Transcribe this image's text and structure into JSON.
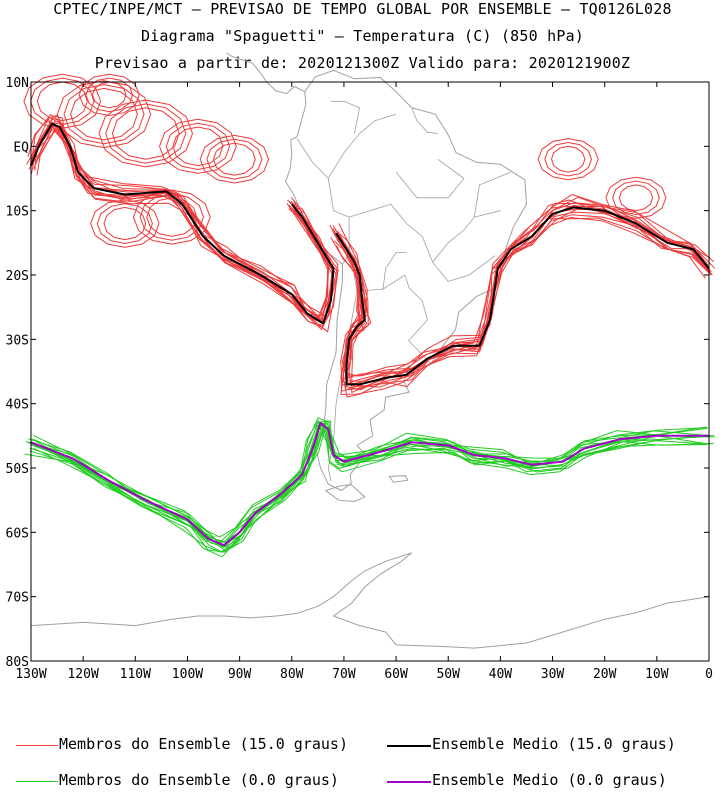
{
  "title": {
    "line1": "CPTEC/INPE/MCT – PREVISAO DE TEMPO GLOBAL POR ENSEMBLE – TQ0126L028",
    "line2": "Diagrama \"Spaguetti\" – Temperatura (C) (850 hPa)",
    "line3": "Previsao a partir de: 2020121300Z  Valido para: 2020121900Z"
  },
  "map": {
    "lon_range": [
      -130,
      0
    ],
    "lat_range": [
      -80,
      10
    ],
    "lat_ticks": [
      {
        "value": 10,
        "label": "10N"
      },
      {
        "value": 0,
        "label": "EQ"
      },
      {
        "value": -10,
        "label": "10S"
      },
      {
        "value": -20,
        "label": "20S"
      },
      {
        "value": -30,
        "label": "30S"
      },
      {
        "value": -40,
        "label": "40S"
      },
      {
        "value": -50,
        "label": "50S"
      },
      {
        "value": -60,
        "label": "60S"
      },
      {
        "value": -70,
        "label": "70S"
      },
      {
        "value": -80,
        "label": "80S"
      }
    ],
    "lon_ticks": [
      {
        "value": -130,
        "label": "130W"
      },
      {
        "value": -120,
        "label": "120W"
      },
      {
        "value": -110,
        "label": "110W"
      },
      {
        "value": -100,
        "label": "100W"
      },
      {
        "value": -90,
        "label": "90W"
      },
      {
        "value": -80,
        "label": "80W"
      },
      {
        "value": -70,
        "label": "70W"
      },
      {
        "value": -60,
        "label": "60W"
      },
      {
        "value": -50,
        "label": "50W"
      },
      {
        "value": -40,
        "label": "40W"
      },
      {
        "value": -30,
        "label": "30W"
      },
      {
        "value": -20,
        "label": "20W"
      },
      {
        "value": -10,
        "label": "10W"
      },
      {
        "value": 0,
        "label": "0"
      }
    ],
    "colors": {
      "coastline": "#a0a0a0",
      "members_15": "#ee3a3a",
      "mean_15": "#000000",
      "members_0": "#22cc22",
      "mean_0": "#a000c8"
    }
  },
  "chart_data": {
    "type": "line",
    "series": [
      {
        "name": "Ensemble Medio (15.0 graus)",
        "segments": [
          [
            [
              -130,
              -3
            ],
            [
              -128.5,
              0
            ],
            [
              -126,
              3.5
            ],
            [
              -124.5,
              3
            ],
            [
              -122.5,
              0
            ],
            [
              -121,
              -4
            ],
            [
              -118,
              -6.5
            ],
            [
              -112,
              -7.5
            ],
            [
              -104,
              -7
            ],
            [
              -101,
              -9
            ],
            [
              -97,
              -14
            ],
            [
              -93,
              -17
            ],
            [
              -86,
              -20
            ],
            [
              -80,
              -23
            ],
            [
              -77,
              -26
            ],
            [
              -74,
              -27.5
            ],
            [
              -72.5,
              -24
            ],
            [
              -72,
              -19
            ],
            [
              -75,
              -15
            ],
            [
              -78,
              -11
            ],
            [
              -80,
              -9
            ]
          ],
          [
            [
              -71.5,
              -13.5
            ],
            [
              -69.5,
              -16
            ],
            [
              -68,
              -18
            ],
            [
              -67,
              -20
            ],
            [
              -66.5,
              -24
            ],
            [
              -66,
              -27
            ],
            [
              -67.5,
              -28
            ],
            [
              -69,
              -30
            ],
            [
              -69.5,
              -34
            ],
            [
              -69.5,
              -37
            ],
            [
              -67,
              -37
            ],
            [
              -62,
              -36
            ],
            [
              -58,
              -35.5
            ],
            [
              -54,
              -33
            ],
            [
              -49,
              -31
            ],
            [
              -44,
              -31
            ],
            [
              -42,
              -27
            ],
            [
              -40.5,
              -19
            ],
            [
              -38,
              -16
            ],
            [
              -34,
              -14
            ],
            [
              -30,
              -10.5
            ],
            [
              -26,
              -9.5
            ],
            [
              -20,
              -10
            ],
            [
              -14,
              -12
            ],
            [
              -8,
              -15
            ],
            [
              -3,
              -16
            ],
            [
              0,
              -19
            ]
          ]
        ]
      },
      {
        "name": "Ensemble Medio (0.0 graus)",
        "segments": [
          [
            [
              -130,
              -46
            ],
            [
              -122,
              -48.5
            ],
            [
              -115,
              -52
            ],
            [
              -108,
              -55
            ],
            [
              -100,
              -58
            ],
            [
              -96,
              -61
            ],
            [
              -93,
              -62
            ],
            [
              -90,
              -60
            ],
            [
              -87,
              -57
            ],
            [
              -82,
              -54
            ],
            [
              -78,
              -51
            ],
            [
              -76,
              -47
            ],
            [
              -74.5,
              -43
            ],
            [
              -73,
              -44
            ],
            [
              -72,
              -48
            ],
            [
              -70,
              -49
            ],
            [
              -63,
              -47.5
            ],
            [
              -57,
              -46
            ],
            [
              -50,
              -46.5
            ],
            [
              -45,
              -48
            ],
            [
              -39,
              -48.5
            ],
            [
              -34,
              -49.5
            ],
            [
              -28,
              -49
            ],
            [
              -24,
              -47
            ],
            [
              -17,
              -45.5
            ],
            [
              -10,
              -45
            ],
            [
              0,
              -45
            ]
          ]
        ]
      }
    ]
  },
  "legend": {
    "members_15": "Membros do Ensemble (15.0 graus)",
    "mean_15": "Ensemble Medio (15.0 graus)",
    "members_0": "Membros do Ensemble (0.0 graus)",
    "mean_0": "Ensemble Medio (0.0 graus)"
  }
}
